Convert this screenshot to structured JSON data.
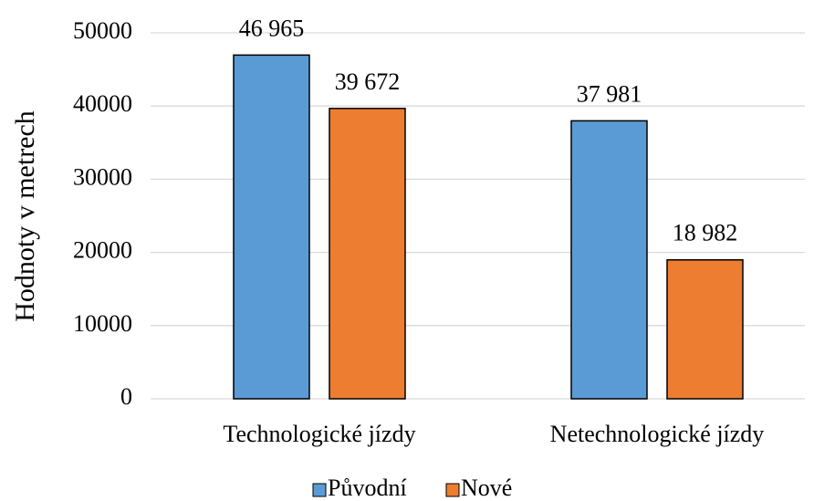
{
  "chart_data": {
    "type": "bar",
    "y_label": "Hodnoty v metrech",
    "categories": [
      "Technologické jízdy",
      "Netechnologické jízdy"
    ],
    "series": [
      {
        "name": "Původní",
        "color": "#5b9bd5",
        "values": [
          46965,
          37981
        ],
        "value_labels": [
          "46 965",
          "37 981"
        ]
      },
      {
        "name": "Nové",
        "color": "#ed7d31",
        "values": [
          39672,
          18982
        ],
        "value_labels": [
          "39 672",
          "18 982"
        ]
      }
    ],
    "ylim": [
      0,
      50000
    ],
    "yticks": [
      0,
      10000,
      20000,
      30000,
      40000,
      50000
    ],
    "grid": true,
    "legend": "bottom"
  }
}
